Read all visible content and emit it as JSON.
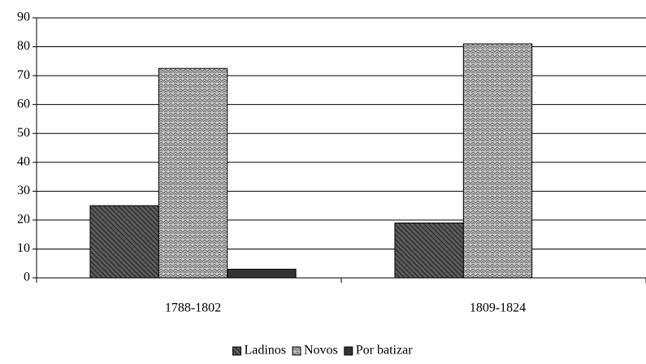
{
  "chart_data": {
    "type": "bar",
    "categories": [
      "1788-1802",
      "1809-1824"
    ],
    "series": [
      {
        "name": "Ladinos",
        "color": "#5a5a5a",
        "values": [
          25,
          19
        ]
      },
      {
        "name": "Novos",
        "color": "#c8c8c8",
        "values": [
          72.5,
          81
        ]
      },
      {
        "name": "Por batizar",
        "color": "#333333",
        "values": [
          3,
          0
        ]
      }
    ],
    "ylim": [
      0,
      90
    ],
    "yticks": [
      0,
      10,
      20,
      30,
      40,
      50,
      60,
      70,
      80,
      90
    ],
    "grid": true,
    "legend": "bottom"
  }
}
